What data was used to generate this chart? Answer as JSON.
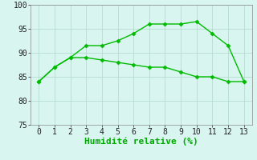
{
  "line1_x": [
    0,
    1,
    2,
    3,
    4,
    5,
    6,
    7,
    8,
    9,
    10,
    11,
    12,
    13
  ],
  "line1_y": [
    84,
    87,
    89,
    91.5,
    91.5,
    92.5,
    94,
    96,
    96,
    96,
    96.5,
    94,
    91.5,
    84
  ],
  "line2_x": [
    0,
    1,
    2,
    3,
    4,
    5,
    6,
    7,
    8,
    9,
    10,
    11,
    12,
    13
  ],
  "line2_y": [
    84,
    87,
    89,
    89,
    88.5,
    88,
    87.5,
    87,
    87,
    86,
    85,
    85,
    84,
    84
  ],
  "line_color": "#00bb00",
  "marker": "D",
  "marker_size": 2.5,
  "xlabel": "Humidité relative (%)",
  "xlabel_color": "#00aa00",
  "xlabel_fontsize": 8,
  "bg_color": "#d8f5f0",
  "grid_color": "#b0d8cc",
  "tick_color": "#222222",
  "tick_fontsize": 7,
  "xlim": [
    -0.5,
    13.5
  ],
  "ylim": [
    75,
    100
  ],
  "yticks": [
    75,
    80,
    85,
    90,
    95,
    100
  ],
  "xticks": [
    0,
    1,
    2,
    3,
    4,
    5,
    6,
    7,
    8,
    9,
    10,
    11,
    12,
    13
  ]
}
